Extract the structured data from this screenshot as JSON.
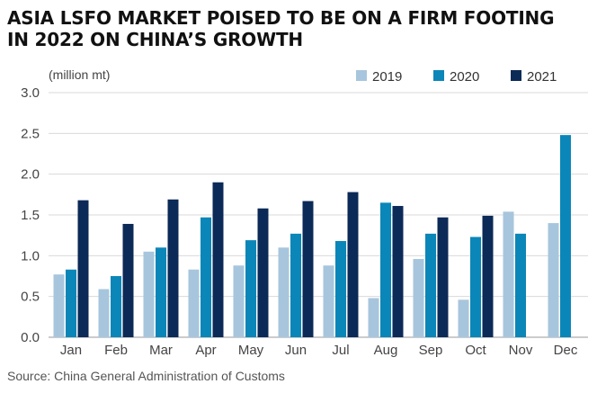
{
  "title_lines": [
    "ASIA LSFO MARKET POISED TO BE ON A FIRM FOOTING",
    "IN 2022 ON CHINA’S GROWTH"
  ],
  "unit_label": "(million mt)",
  "source": "Source: China General Administration of Customs",
  "colors": {
    "2019": "#a7c6dd",
    "2020": "#0b86b8",
    "2021": "#0c2a57"
  },
  "chart_data": {
    "type": "bar",
    "title": "ASIA LSFO MARKET POISED TO BE ON A FIRM FOOTING IN 2022 ON CHINA’S GROWTH",
    "ylabel": "(million mt)",
    "xlabel": "",
    "ylim": [
      0,
      3.0
    ],
    "yticks": [
      "0.0",
      "0.5",
      "1.0",
      "1.5",
      "2.0",
      "2.5",
      "3.0"
    ],
    "categories": [
      "Jan",
      "Feb",
      "Mar",
      "Apr",
      "May",
      "Jun",
      "Jul",
      "Aug",
      "Sep",
      "Oct",
      "Nov",
      "Dec"
    ],
    "series": [
      {
        "name": "2019",
        "values": [
          0.77,
          0.59,
          1.05,
          0.83,
          0.88,
          1.1,
          0.88,
          0.48,
          0.96,
          0.46,
          1.54,
          1.4
        ]
      },
      {
        "name": "2020",
        "values": [
          0.83,
          0.75,
          1.1,
          1.47,
          1.19,
          1.27,
          1.18,
          1.65,
          1.27,
          1.23,
          1.27,
          2.48
        ]
      },
      {
        "name": "2021",
        "values": [
          1.68,
          1.39,
          1.69,
          1.9,
          1.58,
          1.67,
          1.78,
          1.61,
          1.47,
          1.49,
          null,
          null
        ]
      }
    ],
    "legend": "top-right",
    "grid": true
  }
}
